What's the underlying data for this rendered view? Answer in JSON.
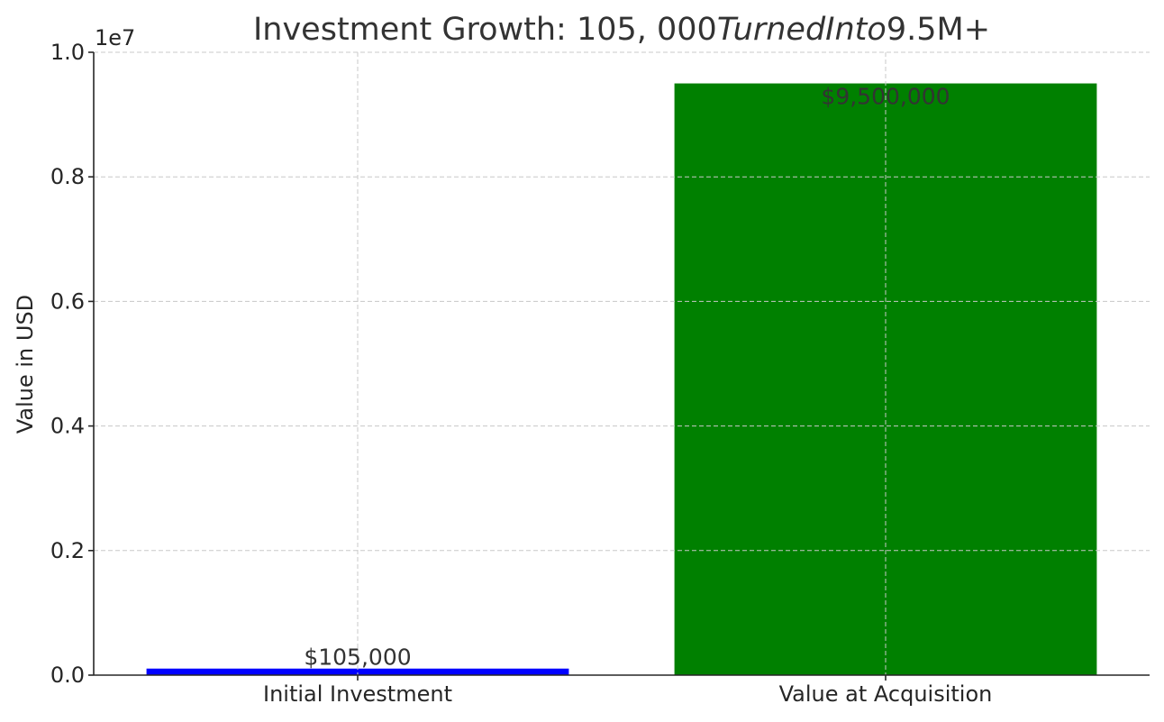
{
  "chart_data": {
    "type": "bar",
    "title_parts": [
      {
        "text": "Investment Growth: 105, 000",
        "italic": false
      },
      {
        "text": "TurnedInto",
        "italic": true
      },
      {
        "text": "9.5M+",
        "italic": false
      }
    ],
    "ylabel": "Value in USD",
    "xlabel": "",
    "offset_label": "1e7",
    "categories": [
      "Initial Investment",
      "Value at Acquisition"
    ],
    "values": [
      105000,
      9500000
    ],
    "data_labels": [
      "$105,000",
      "$9,500,000"
    ],
    "colors": [
      "#0000ff",
      "#008000"
    ],
    "ylim": [
      0,
      10000000
    ],
    "yticks": [
      0,
      2000000,
      4000000,
      6000000,
      8000000,
      10000000
    ],
    "ytick_labels": [
      "0.0",
      "0.2",
      "0.4",
      "0.6",
      "0.8",
      "1.0"
    ],
    "grid": true
  }
}
